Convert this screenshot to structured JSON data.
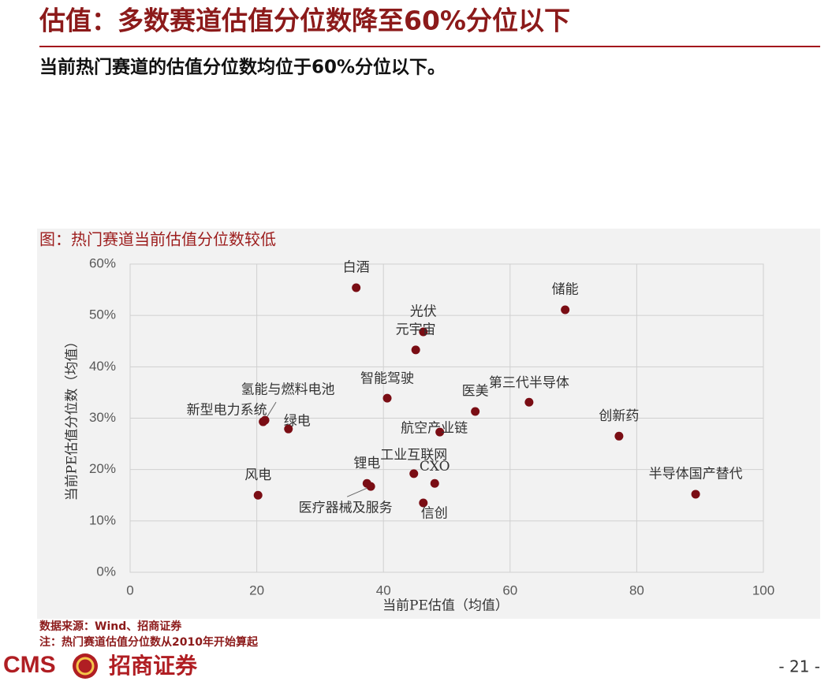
{
  "header": {
    "title": "估值：多数赛道估值分位数降至60%分位以下",
    "subtitle": "当前热门赛道的估值分位数均位于60%分位以下。"
  },
  "chart_data": {
    "type": "scatter",
    "title": "图：热门赛道当前估值分位数较低",
    "xlabel": "当前PE估值（均值）",
    "ylabel": "当前PE估值分位数（均值）",
    "labels": [
      "白酒",
      "储能",
      "光伏",
      "元宇宙",
      "智能驾驶",
      "医美",
      "第三代半导体",
      "新型电力系统",
      "氢能与燃料电池",
      "绿电",
      "航空产业链",
      "创新药",
      "风电",
      "锂电",
      "医疗器械及服务",
      "工业互联网",
      "CXO",
      "信创",
      "半导体国产替代"
    ],
    "x": [
      35.7,
      68.7,
      46.3,
      45.1,
      40.6,
      54.5,
      63.0,
      21.0,
      21.3,
      25.0,
      48.9,
      77.2,
      20.2,
      37.4,
      38.0,
      44.8,
      48.1,
      46.3,
      89.3
    ],
    "values": [
      55.4,
      51.1,
      46.8,
      43.3,
      33.9,
      31.3,
      33.1,
      29.3,
      29.6,
      27.9,
      27.3,
      26.5,
      15.0,
      17.3,
      16.7,
      19.2,
      17.3,
      13.5,
      15.2
    ],
    "color": "#7a0d14",
    "grid": true,
    "xlim": [
      0,
      100
    ],
    "xticks": [
      0,
      20,
      40,
      60,
      80,
      100
    ],
    "ylim": [
      0,
      60
    ],
    "yticks": [
      {
        "value": 0,
        "label": "0%"
      },
      {
        "value": 10,
        "label": "10%"
      },
      {
        "value": 20,
        "label": "20%"
      },
      {
        "value": 30,
        "label": "30%"
      },
      {
        "value": 40,
        "label": "40%"
      },
      {
        "value": 50,
        "label": "50%"
      },
      {
        "value": 60,
        "label": "60%"
      }
    ]
  },
  "notes": [
    "数据来源：Wind、招商证券",
    "注：热门赛道估值分位数从2010年开始算起"
  ],
  "footer": {
    "logo_en": "CMS",
    "logo_cn": "招商证券",
    "page": "- 21 -"
  }
}
